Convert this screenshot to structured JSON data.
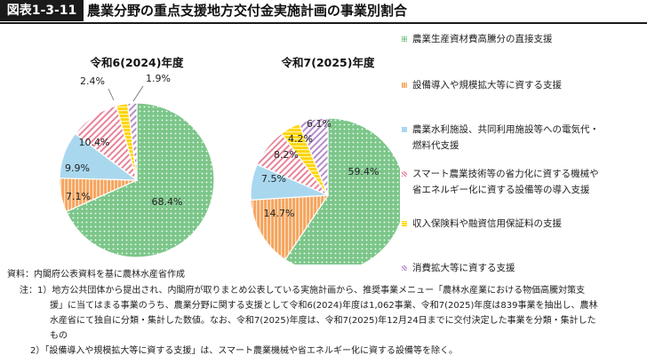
{
  "header": {
    "figure_number": "図表1-3-11",
    "title": "農業分野の重点支援地方交付金実施計画の事業別割合"
  },
  "chart_data": [
    {
      "type": "pie",
      "title": "令和6(2024)年度",
      "categories": [
        "農業生産資材費高騰分の直接支援",
        "設備導入や規模拡大等に資する支援",
        "農業水利施設、共同利用施設等への電気代・燃料代支援",
        "スマート農業技術等の省力化に資する機械や省エネルギー化に資する設備等の導入支援",
        "収入保険料や融資信用保証料の支援",
        "消費拡大等に資する支援"
      ],
      "values": [
        68.4,
        7.1,
        9.9,
        10.4,
        2.4,
        1.9
      ],
      "labels": [
        "68.4%",
        "7.1%",
        "9.9%",
        "10.4%",
        "2.4%",
        "1.9%"
      ]
    },
    {
      "type": "pie",
      "title": "令和7(2025)年度",
      "categories": [
        "農業生産資材費高騰分の直接支援",
        "設備導入や規模拡大等に資する支援",
        "農業水利施設、共同利用施設等への電気代・燃料代支援",
        "スマート農業技術等の省力化に資する機械や省エネルギー化に資する設備等の導入支援",
        "収入保険料や融資信用保証料の支援",
        "消費拡大等に資する支援"
      ],
      "values": [
        59.4,
        14.7,
        7.5,
        8.2,
        4.2,
        6.1
      ],
      "labels": [
        "59.4%",
        "14.7%",
        "7.5%",
        "8.2%",
        "4.2%",
        "6.1%"
      ]
    }
  ],
  "legend": [
    {
      "lines": [
        "農業生産資材費高騰分の直接支援"
      ],
      "color": "#7cc68a",
      "pattern": "dots"
    },
    {
      "lines": [
        "設備導入や規模拡大等に資する支援"
      ],
      "color": "#f4a460",
      "pattern": "vstripes"
    },
    {
      "lines": [
        "農業水利施設、共同利用施設等への電気代・",
        "燃料代支援"
      ],
      "color": "#a9d8ee",
      "pattern": "solid"
    },
    {
      "lines": [
        "スマート農業技術等の省力化に資する機械や",
        "省エネルギー化に資する設備等の導入支援"
      ],
      "color": "#f0a0b0",
      "pattern": "diag"
    },
    {
      "lines": [
        "収入保険料や融資信用保証料の支援"
      ],
      "color": "#ffd400",
      "pattern": "hstripes"
    },
    {
      "lines": [
        "消費拡大等に資する支援"
      ],
      "color": "#c8a2d8",
      "pattern": "diag2"
    }
  ],
  "notes": [
    "資料：内閣府公表資料を基に農林水産省作成",
    "注：1）地方公共団体から提出され、内閣府が取りまとめ公表している実施計画から、推奨事業メニュー「農林水産業における物価高騰対策支",
    "援」に当てはまる事業のうち、農業分野に関する支援として令和6(2024)年度は1,062事業、令和7(2025)年度は839事業を抽出し、農林",
    "水産省にて独自に分類・集計した数値。なお、令和7(2025)年度は、令和7(2025)年12月24日までに交付決定した事業を分類・集計した",
    "もの",
    "2）「設備導入や規模拡大等に資する支援」は、スマート農業機械や省エネルギー化に資する設備等を除く。"
  ]
}
